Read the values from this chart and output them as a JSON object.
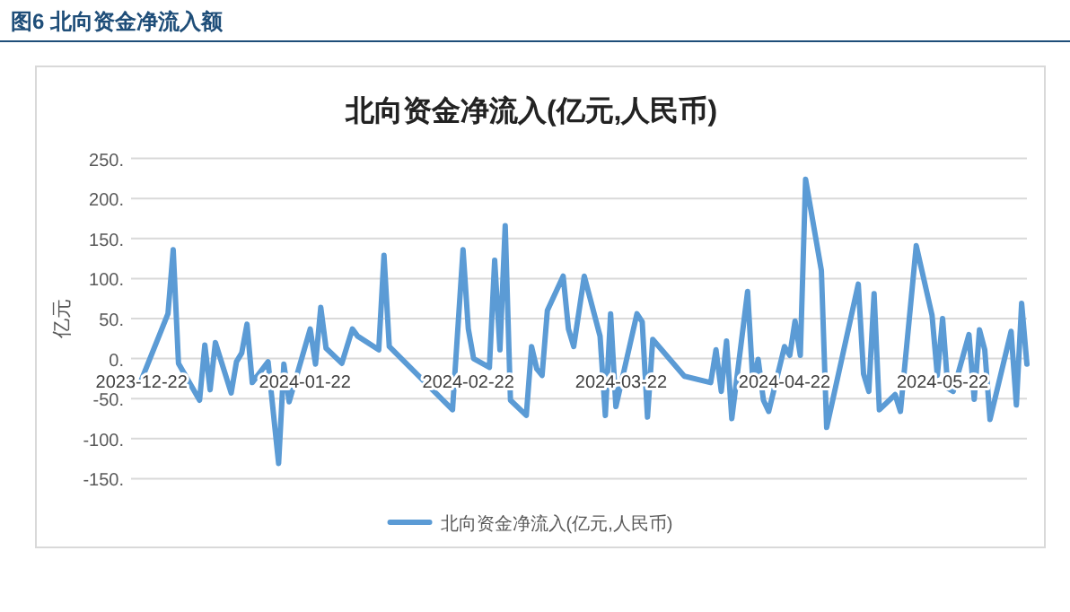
{
  "chart_data": {
    "type": "line",
    "title": "图6 北向资金净流入额",
    "subtitle": "北向资金净流入(亿元,人民币)",
    "ylabel": "亿元",
    "x": [
      "2023-12-22",
      "2023-12-27",
      "2023-12-28",
      "2023-12-29",
      "2024-01-02",
      "2024-01-03",
      "2024-01-04",
      "2024-01-05",
      "2024-01-08",
      "2024-01-09",
      "2024-01-10",
      "2024-01-11",
      "2024-01-12",
      "2024-01-15",
      "2024-01-17",
      "2024-01-18",
      "2024-01-19",
      "2024-01-23",
      "2024-01-24",
      "2024-01-25",
      "2024-01-26",
      "2024-01-29",
      "2024-01-31",
      "2024-02-01",
      "2024-02-05",
      "2024-02-06",
      "2024-02-07",
      "2024-02-19",
      "2024-02-21",
      "2024-02-22",
      "2024-02-23",
      "2024-02-26",
      "2024-02-27",
      "2024-02-28",
      "2024-02-29",
      "2024-03-01",
      "2024-03-04",
      "2024-03-05",
      "2024-03-06",
      "2024-03-07",
      "2024-03-08",
      "2024-03-11",
      "2024-03-12",
      "2024-03-13",
      "2024-03-15",
      "2024-03-18",
      "2024-03-19",
      "2024-03-20",
      "2024-03-21",
      "2024-03-25",
      "2024-03-26",
      "2024-03-27",
      "2024-03-28",
      "2024-04-03",
      "2024-04-08",
      "2024-04-09",
      "2024-04-10",
      "2024-04-11",
      "2024-04-12",
      "2024-04-15",
      "2024-04-16",
      "2024-04-17",
      "2024-04-18",
      "2024-04-19",
      "2024-04-22",
      "2024-04-23",
      "2024-04-24",
      "2024-04-25",
      "2024-04-26",
      "2024-04-29",
      "2024-04-30",
      "2024-05-06",
      "2024-05-07",
      "2024-05-08",
      "2024-05-09",
      "2024-05-10",
      "2024-05-13",
      "2024-05-14",
      "2024-05-17",
      "2024-05-20",
      "2024-05-21",
      "2024-05-22",
      "2024-05-23",
      "2024-05-24",
      "2024-05-27",
      "2024-05-28",
      "2024-05-29",
      "2024-05-30",
      "2024-05-31",
      "2024-06-04",
      "2024-06-05",
      "2024-06-06",
      "2024-06-07"
    ],
    "series": [
      {
        "name": "北向资金净流入(亿元,人民币)",
        "color": "#5b9bd5",
        "values": [
          -26,
          56,
          136,
          -6,
          -52,
          17,
          -39,
          20,
          -43,
          -4,
          7,
          43,
          -30,
          -4,
          -131,
          -7,
          -54,
          37,
          -7,
          64,
          13,
          -6,
          37,
          28,
          11,
          129,
          15,
          -64,
          136,
          37,
          0,
          -11,
          123,
          11,
          166,
          -52,
          -71,
          15,
          -13,
          -21,
          60,
          103,
          37,
          15,
          103,
          28,
          -71,
          56,
          -60,
          56,
          46,
          -73,
          24,
          -22,
          -30,
          11,
          -41,
          22,
          -75,
          84,
          -30,
          -1,
          -52,
          -66,
          15,
          4,
          47,
          4,
          224,
          110,
          -86,
          93,
          -19,
          -41,
          81,
          -64,
          -45,
          -66,
          141,
          54,
          -21,
          50,
          -37,
          -41,
          30,
          -51,
          36,
          11,
          -76,
          34,
          -58,
          69,
          -7
        ]
      }
    ],
    "xlim": [
      "2023-12-20",
      "2024-06-07"
    ],
    "xticks": [
      "2023-12-22",
      "2024-01-22",
      "2024-02-22",
      "2024-03-22",
      "2024-04-22",
      "2024-05-22"
    ],
    "ylim": [
      -150,
      250
    ],
    "yticks": [
      {
        "value": 250,
        "label": "250."
      },
      {
        "value": 200,
        "label": "200."
      },
      {
        "value": 150,
        "label": "150."
      },
      {
        "value": 100,
        "label": "100."
      },
      {
        "value": 50,
        "label": "50."
      },
      {
        "value": 0,
        "label": "0."
      },
      {
        "value": -50,
        "label": "-50."
      },
      {
        "value": -100,
        "label": "-100."
      },
      {
        "value": -150,
        "label": "-150."
      }
    ],
    "grid": "y",
    "legend": "bottom",
    "marker": "none",
    "line_style": "solid"
  }
}
